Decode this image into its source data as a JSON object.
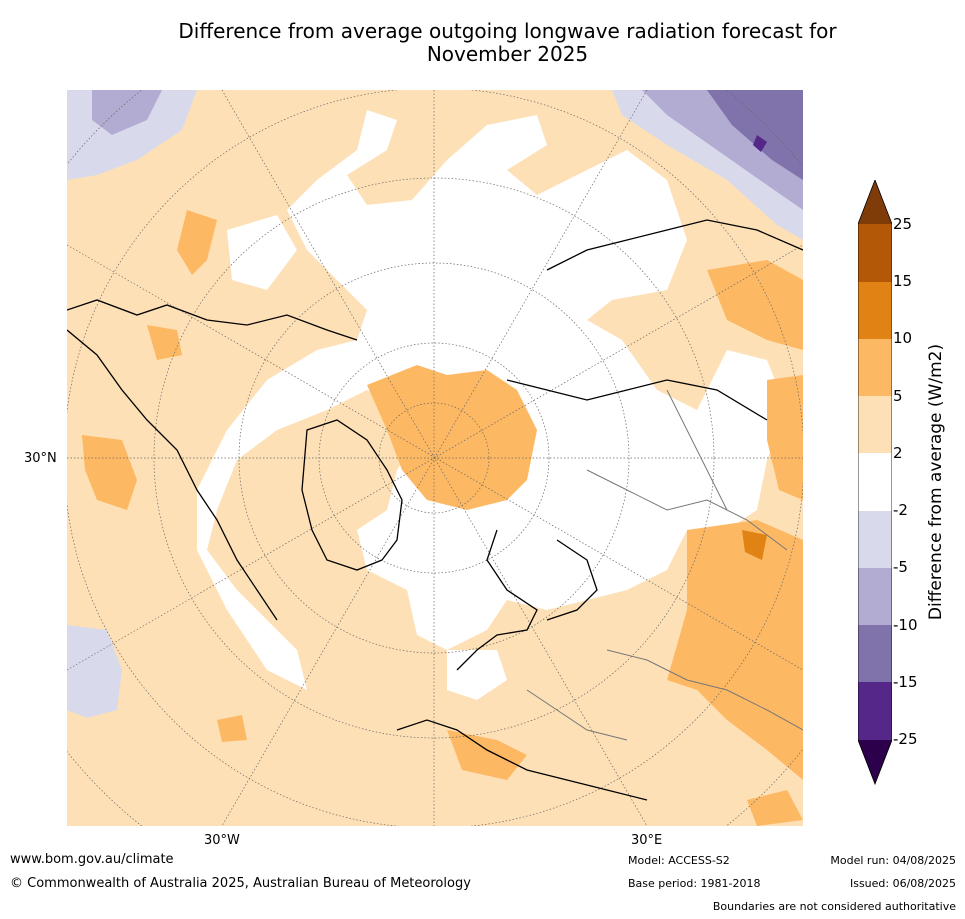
{
  "title_line1": "Difference from average outgoing longwave radiation forecast for",
  "title_line2": "November 2025",
  "map_labels": {
    "lat": "30°N",
    "lon_west": "30°W",
    "lon_east": "30°E"
  },
  "colorbar": {
    "label": "Difference from average (W/m2)",
    "ticks": [
      "25",
      "15",
      "10",
      "5",
      "2",
      "-2",
      "-5",
      "-10",
      "-15",
      "-25"
    ],
    "colors": {
      "gt25": "#7f3b08",
      "15_25": "#b35806",
      "10_15": "#e08214",
      "5_10": "#fdb863",
      "2_5": "#fee0b6",
      "m2_2": "#ffffff",
      "m5_m2": "#d8daeb",
      "m10_m5": "#b2abd2",
      "m15_m10": "#8073ac",
      "m25_m15": "#542788",
      "lt_m25": "#2d004b"
    }
  },
  "footer": {
    "website": "www.bom.gov.au/climate",
    "copyright": "© Commonwealth of Australia 2025, Australian Bureau of Meteorology",
    "model": "Model: ACCESS-S2",
    "base_period": "Base period: 1981-2018",
    "model_run": "Model run: 04/08/2025",
    "issued": "Issued: 06/08/2025",
    "disclaimer": "Boundaries are not considered authoritative"
  }
}
